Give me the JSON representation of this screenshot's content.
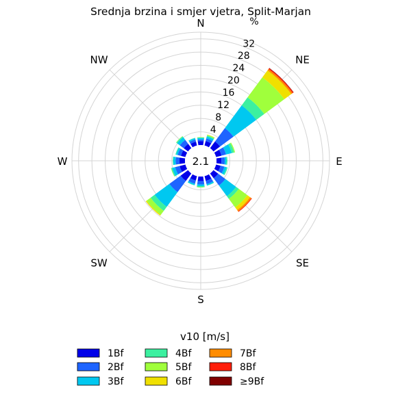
{
  "chart_data": {
    "type": "windrose",
    "title": "Srednja brzina i smjer vjetra, Split-Marjan",
    "calm_label": "2.1",
    "radial_unit": "%",
    "radial_ticks": [
      "4",
      "8",
      "12",
      "16",
      "20",
      "24",
      "28",
      "32"
    ],
    "radial_tick_values": [
      4,
      8,
      12,
      16,
      20,
      24,
      28,
      32
    ],
    "radial_max": 34,
    "calm_offset": 2.1,
    "direction_labels": [
      "N",
      "NE",
      "E",
      "SE",
      "S",
      "SW",
      "W",
      "NW"
    ],
    "legend_title": "v10 [m/s]",
    "legend_placement": "bottom",
    "categories": [
      "1Bf",
      "2Bf",
      "3Bf",
      "4Bf",
      "5Bf",
      "6Bf",
      "7Bf",
      "8Bf",
      "≥9Bf"
    ],
    "colors": [
      "#0000e8",
      "#1e64ff",
      "#00c8f0",
      "#3cf0a0",
      "#a0ff3c",
      "#f0e000",
      "#ff8c00",
      "#ff1e0a",
      "#800000"
    ],
    "directions": [
      {
        "angle": 0,
        "values": [
          1.2,
          0.5,
          0.4,
          0.2,
          0.1,
          0,
          0,
          0,
          0
        ]
      },
      {
        "angle": 22.5,
        "values": [
          1.4,
          0.8,
          0.6,
          0.3,
          0.2,
          0.1,
          0,
          0,
          0
        ]
      },
      {
        "angle": 45,
        "values": [
          2.5,
          5.0,
          8.5,
          3.0,
          7.5,
          2.6,
          0.5,
          0.3,
          0.1
        ]
      },
      {
        "angle": 67.5,
        "values": [
          1.7,
          1.4,
          1.8,
          0.7,
          0.3,
          0,
          0,
          0,
          0
        ]
      },
      {
        "angle": 90,
        "values": [
          1.5,
          1.0,
          0.5,
          0.3,
          0,
          0,
          0,
          0,
          0
        ]
      },
      {
        "angle": 112.5,
        "values": [
          1.4,
          1.2,
          0.7,
          0.3,
          0,
          0,
          0,
          0,
          0
        ]
      },
      {
        "angle": 135,
        "values": [
          1.8,
          2.7,
          4.0,
          1.0,
          3.2,
          1.0,
          0.5,
          0.2,
          0
        ]
      },
      {
        "angle": 157.5,
        "values": [
          1.5,
          1.0,
          0.4,
          0.1,
          0,
          0,
          0,
          0,
          0
        ]
      },
      {
        "angle": 180,
        "values": [
          1.4,
          1.0,
          0.5,
          0.3,
          0.1,
          0,
          0,
          0,
          0
        ]
      },
      {
        "angle": 202.5,
        "values": [
          1.4,
          1.0,
          0.4,
          0.1,
          0,
          0,
          0,
          0,
          0
        ]
      },
      {
        "angle": 225,
        "values": [
          2.8,
          4.2,
          5.5,
          1.5,
          1.5,
          0.3,
          0,
          0,
          0
        ]
      },
      {
        "angle": 247.5,
        "values": [
          1.8,
          1.4,
          0.9,
          0.3,
          0.1,
          0,
          0,
          0,
          0
        ]
      },
      {
        "angle": 270,
        "values": [
          1.7,
          1.1,
          0.7,
          0.2,
          0,
          0,
          0,
          0,
          0
        ]
      },
      {
        "angle": 292.5,
        "values": [
          1.4,
          1.0,
          0.5,
          0.2,
          0,
          0,
          0,
          0,
          0
        ]
      },
      {
        "angle": 315,
        "values": [
          1.6,
          1.5,
          1.0,
          0.3,
          0.1,
          0,
          0,
          0,
          0
        ]
      },
      {
        "angle": 337.5,
        "values": [
          1.2,
          0.7,
          0.4,
          0.1,
          0,
          0,
          0,
          0,
          0
        ]
      }
    ]
  }
}
